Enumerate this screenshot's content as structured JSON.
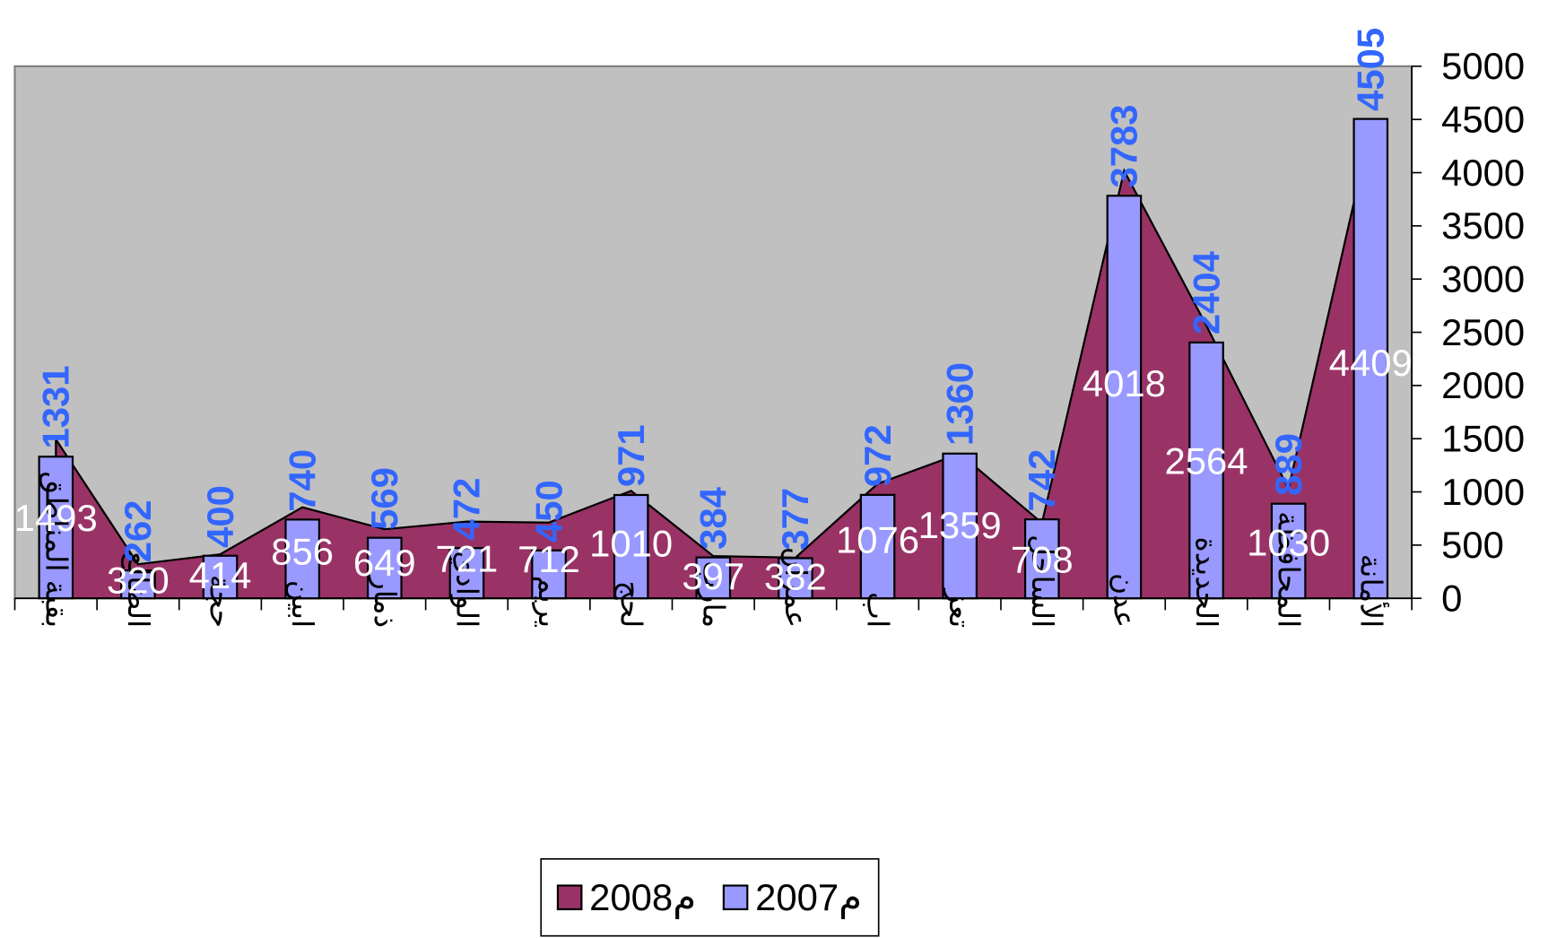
{
  "chart_data": {
    "type": "bar-area",
    "categories": [
      "بقية المناطق",
      "الضالع",
      "حجة",
      "ابين",
      "ذمار",
      "الوادي",
      "يريم",
      "لحج",
      "مارب",
      "عمران",
      "اب",
      "تعز",
      "الساحل",
      "عدن",
      "الحديدة",
      "المحافظة",
      "الأمانة"
    ],
    "series": [
      {
        "name": "2008م",
        "color": "#993366",
        "kind": "area",
        "values": [
          1493,
          320,
          414,
          856,
          649,
          721,
          712,
          1010,
          397,
          382,
          1076,
          1359,
          708,
          4018,
          2564,
          1030,
          4409
        ]
      },
      {
        "name": "2007م",
        "color": "#9999ff",
        "kind": "bar",
        "values": [
          1331,
          262,
          400,
          740,
          569,
          472,
          450,
          971,
          384,
          377,
          972,
          1360,
          742,
          3783,
          2404,
          889,
          4505
        ]
      }
    ],
    "ylim": [
      0,
      5000
    ],
    "yticks": [
      0,
      500,
      1000,
      1500,
      2000,
      2500,
      3000,
      3500,
      4000,
      4500,
      5000
    ],
    "y_axis_side": "right",
    "plot_background": "#c0c0c0",
    "legend": "bottom"
  }
}
